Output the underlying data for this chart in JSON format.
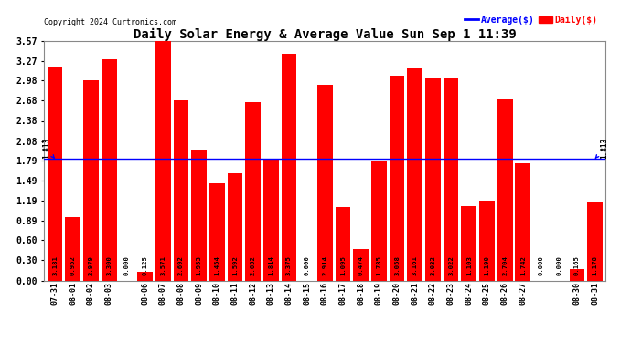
{
  "title": "Daily Solar Energy & Average Value Sun Sep 1 11:39",
  "copyright": "Copyright 2024 Curtronics.com",
  "average_value": 1.813,
  "bar_color": "#ff0000",
  "average_line_color": "#0000ff",
  "background_color": "#ffffff",
  "grid_color": "#cccccc",
  "categories": [
    "07-31",
    "08-01",
    "08-02",
    "08-03",
    "",
    "08-06",
    "08-07",
    "08-08",
    "08-09",
    "08-10",
    "08-11",
    "08-12",
    "08-13",
    "08-14",
    "08-15",
    "08-16",
    "08-17",
    "08-18",
    "08-19",
    "08-20",
    "08-21",
    "08-22",
    "08-23",
    "08-24",
    "08-25",
    "08-26",
    "08-27",
    "",
    "",
    "08-30",
    "08-31"
  ],
  "values": [
    3.181,
    0.952,
    2.979,
    3.3,
    0.0,
    0.125,
    3.571,
    2.692,
    1.953,
    1.454,
    1.592,
    2.652,
    1.814,
    3.375,
    0.0,
    2.914,
    1.095,
    0.474,
    1.785,
    3.058,
    3.161,
    3.032,
    3.022,
    1.103,
    1.19,
    2.704,
    1.742,
    0.0,
    0.0,
    0.165,
    1.178
  ],
  "yticks": [
    0.0,
    0.3,
    0.6,
    0.89,
    1.19,
    1.49,
    1.79,
    2.08,
    2.38,
    2.68,
    2.98,
    3.27,
    3.57
  ],
  "ylim": [
    0.0,
    3.57
  ],
  "legend_average_label": "Average($)",
  "legend_daily_label": "Daily($)"
}
